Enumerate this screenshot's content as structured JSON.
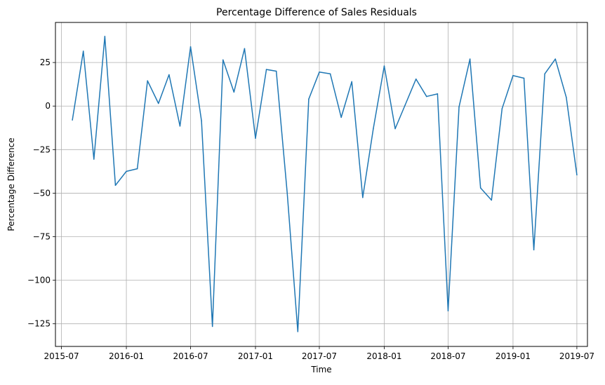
{
  "chart_data": {
    "type": "line",
    "title": "Percentage Difference of Sales Residuals",
    "xlabel": "Time",
    "ylabel": "Percentage Difference",
    "grid": true,
    "x_tick_labels": [
      "2015-07",
      "2016-01",
      "2016-07",
      "2017-01",
      "2017-07",
      "2018-01",
      "2018-07",
      "2019-01",
      "2019-07"
    ],
    "y_ticks": [
      25,
      0,
      -25,
      -50,
      -75,
      -100,
      -125
    ],
    "y_tick_labels": [
      "25",
      "0",
      "−25",
      "−50",
      "−75",
      "−100",
      "−125"
    ],
    "ylim": [
      -138,
      48
    ],
    "xlim": [
      "2015-06-14",
      "2019-07-31"
    ],
    "series": [
      {
        "color": "#1f77b4",
        "x": [
          "2015-08-01",
          "2015-09-01",
          "2015-10-01",
          "2015-11-01",
          "2015-12-01",
          "2016-01-01",
          "2016-02-01",
          "2016-03-01",
          "2016-04-01",
          "2016-05-01",
          "2016-06-01",
          "2016-07-01",
          "2016-08-01",
          "2016-09-01",
          "2016-10-01",
          "2016-11-01",
          "2016-12-01",
          "2017-01-01",
          "2017-02-01",
          "2017-03-01",
          "2017-04-01",
          "2017-05-01",
          "2017-06-01",
          "2017-07-01",
          "2017-08-01",
          "2017-09-01",
          "2017-10-01",
          "2017-11-01",
          "2017-12-01",
          "2018-01-01",
          "2018-02-01",
          "2018-03-01",
          "2018-04-01",
          "2018-05-01",
          "2018-06-01",
          "2018-07-01",
          "2018-08-01",
          "2018-09-01",
          "2018-10-01",
          "2018-11-01",
          "2018-12-01",
          "2019-01-01",
          "2019-02-01",
          "2019-03-01",
          "2019-04-01",
          "2019-05-01",
          "2019-06-01",
          "2019-07-01"
        ],
        "values": [
          -8,
          31.5,
          -30.5,
          40,
          -45.5,
          -37.5,
          -36,
          14.5,
          1.5,
          18,
          -11.5,
          34,
          -8.5,
          -126.5,
          26.5,
          8,
          33,
          -18.5,
          21,
          20,
          -50,
          -129.5,
          4,
          19.5,
          18.5,
          -6.5,
          14,
          -52.5,
          -13,
          23,
          -13,
          0.5,
          15.5,
          5.5,
          7,
          -117.5,
          -0.5,
          27,
          -47,
          -54,
          -1.5,
          17.5,
          16,
          -82.5,
          18.5,
          27,
          5,
          -39.5
        ]
      }
    ]
  }
}
